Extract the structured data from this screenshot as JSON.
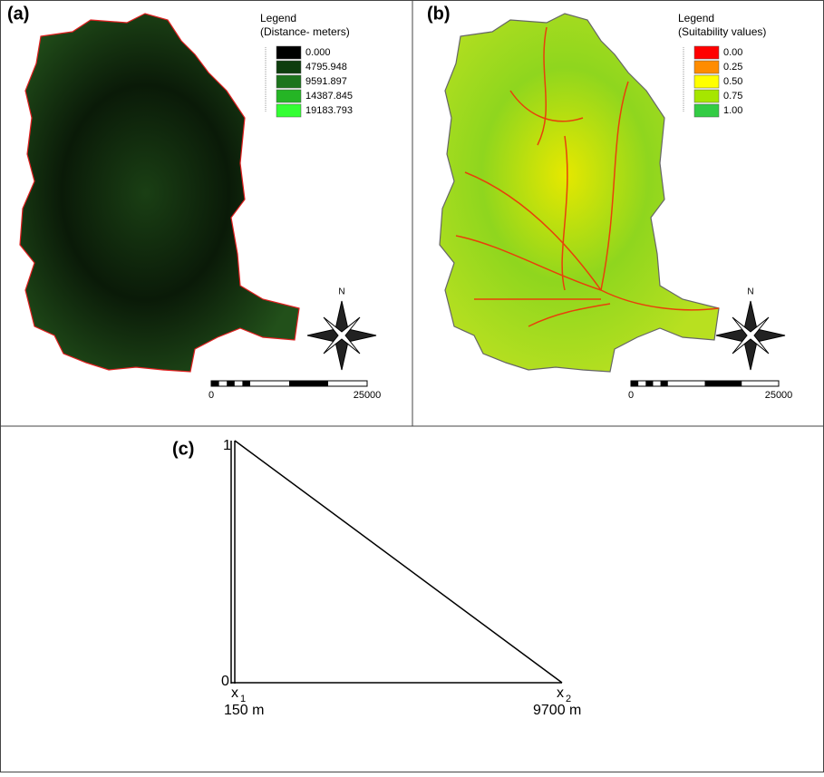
{
  "panel_a": {
    "label": "(a)",
    "legend_title": [
      "Legend",
      "(Distance- meters)"
    ],
    "legend_items": [
      "0.000",
      "4795.948",
      "9591.897",
      "14387.845",
      "19183.793"
    ],
    "legend_colors": [
      "#000000",
      "#0d3d0d",
      "#1c741c",
      "#25b525",
      "#33ff33"
    ],
    "north": "N",
    "scale_labels": [
      "0",
      "25000"
    ]
  },
  "panel_b": {
    "label": "(b)",
    "legend_title": [
      "Legend",
      "(Suitability values)"
    ],
    "legend_items": [
      "0.00",
      "0.25",
      "0.50",
      "0.75",
      "1.00"
    ],
    "legend_colors": [
      "#ff0000",
      "#ff8c00",
      "#ffff00",
      "#a6e600",
      "#33cc44"
    ],
    "north": "N",
    "scale_labels": [
      "0",
      "25000"
    ]
  },
  "panel_c": {
    "label": "(c)",
    "y_labels": [
      "1",
      "0"
    ],
    "x_labels": [
      {
        "symbol": "x",
        "subscript": "1",
        "distance": "150 m"
      },
      {
        "symbol": "x",
        "subscript": "2",
        "distance": "9700 m"
      }
    ]
  }
}
